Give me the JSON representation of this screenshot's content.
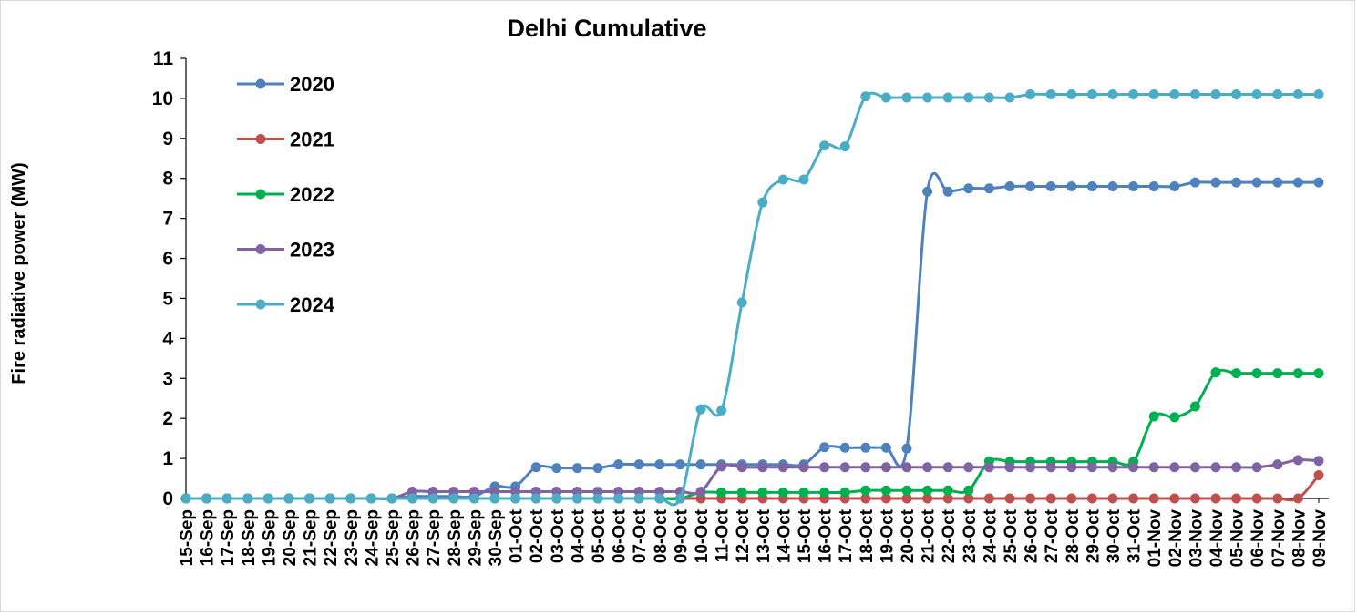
{
  "chart_data": {
    "type": "line",
    "title": "Delhi Cumulative",
    "ylabel": "Fire radiative power (MW)",
    "xlabel": "",
    "ylim": [
      0,
      11
    ],
    "yticks": [
      "0",
      "1",
      "2",
      "3",
      "4",
      "5",
      "6",
      "7",
      "8",
      "9",
      "10",
      "11"
    ],
    "grid": false,
    "legend_position": "top-left",
    "categories": [
      "15-Sep",
      "16-Sep",
      "17-Sep",
      "18-Sep",
      "19-Sep",
      "20-Sep",
      "21-Sep",
      "22-Sep",
      "23-Sep",
      "24-Sep",
      "25-Sep",
      "26-Sep",
      "27-Sep",
      "28-Sep",
      "29-Sep",
      "30-Sep",
      "01-Oct",
      "02-Oct",
      "03-Oct",
      "04-Oct",
      "05-Oct",
      "06-Oct",
      "07-Oct",
      "08-Oct",
      "09-Oct",
      "10-Oct",
      "11-Oct",
      "12-Oct",
      "13-Oct",
      "14-Oct",
      "15-Oct",
      "16-Oct",
      "17-Oct",
      "18-Oct",
      "19-Oct",
      "20-Oct",
      "21-Oct",
      "22-Oct",
      "23-Oct",
      "24-Oct",
      "25-Oct",
      "26-Oct",
      "27-Oct",
      "28-Oct",
      "29-Oct",
      "30-Oct",
      "31-Oct",
      "01-Nov",
      "02-Nov",
      "03-Nov",
      "04-Nov",
      "05-Nov",
      "06-Nov",
      "07-Nov",
      "08-Nov",
      "09-Nov"
    ],
    "series": [
      {
        "name": "2020",
        "color": "#4f81bd",
        "values": [
          0,
          0,
          0,
          0,
          0,
          0,
          0,
          0,
          0,
          0,
          0,
          0.05,
          0.05,
          0.05,
          0.05,
          0.3,
          0.3,
          0.78,
          0.76,
          0.76,
          0.76,
          0.85,
          0.85,
          0.85,
          0.85,
          0.85,
          0.85,
          0.85,
          0.85,
          0.85,
          0.85,
          1.28,
          1.27,
          1.27,
          1.27,
          1.25,
          7.67,
          7.67,
          7.75,
          7.75,
          7.8,
          7.8,
          7.8,
          7.8,
          7.8,
          7.8,
          7.8,
          7.8,
          7.8,
          7.9,
          7.9,
          7.9,
          7.9,
          7.9,
          7.9,
          7.9
        ]
      },
      {
        "name": "2021",
        "color": "#c0504d",
        "values": [
          0,
          0,
          0,
          0,
          0,
          0,
          0,
          0,
          0,
          0,
          0,
          0,
          0,
          0,
          0,
          0,
          0,
          0,
          0,
          0,
          0,
          0,
          0,
          0,
          0,
          0,
          0,
          0,
          0,
          0,
          0,
          0,
          0,
          0,
          0,
          0,
          0,
          0,
          0,
          0,
          0,
          0,
          0,
          0,
          0,
          0,
          0,
          0,
          0,
          0,
          0,
          0,
          0,
          0,
          0,
          0.58
        ]
      },
      {
        "name": "2022",
        "color": "#00b050",
        "values": [
          0,
          0,
          0,
          0,
          0,
          0,
          0,
          0,
          0,
          0,
          0,
          0,
          0,
          0,
          0,
          0,
          0,
          0,
          0,
          0,
          0,
          0,
          0,
          0,
          0,
          0.15,
          0.15,
          0.15,
          0.15,
          0.15,
          0.15,
          0.15,
          0.15,
          0.2,
          0.2,
          0.2,
          0.2,
          0.2,
          0.2,
          0.93,
          0.92,
          0.92,
          0.92,
          0.92,
          0.92,
          0.92,
          0.92,
          2.05,
          2.03,
          2.3,
          3.15,
          3.13,
          3.13,
          3.13,
          3.13,
          3.13
        ]
      },
      {
        "name": "2023",
        "color": "#8064a2",
        "values": [
          0,
          0,
          0,
          0,
          0,
          0,
          0,
          0,
          0,
          0,
          0,
          0.17,
          0.17,
          0.17,
          0.17,
          0.17,
          0.17,
          0.17,
          0.17,
          0.17,
          0.17,
          0.17,
          0.17,
          0.17,
          0.17,
          0.17,
          0.8,
          0.78,
          0.78,
          0.78,
          0.78,
          0.78,
          0.78,
          0.78,
          0.78,
          0.78,
          0.78,
          0.78,
          0.78,
          0.78,
          0.78,
          0.78,
          0.78,
          0.78,
          0.78,
          0.78,
          0.78,
          0.78,
          0.78,
          0.78,
          0.78,
          0.78,
          0.78,
          0.85,
          0.96,
          0.94
        ]
      },
      {
        "name": "2024",
        "color": "#4bacc6",
        "values": [
          0,
          0,
          0,
          0,
          0,
          0,
          0,
          0,
          0,
          0,
          0,
          0,
          0,
          0,
          0,
          0,
          0,
          0,
          0,
          0,
          0,
          0,
          0,
          0,
          0,
          2.23,
          2.2,
          4.9,
          7.4,
          7.97,
          7.97,
          8.82,
          8.8,
          10.05,
          10.02,
          10.02,
          10.02,
          10.02,
          10.02,
          10.02,
          10.02,
          10.1,
          10.1,
          10.1,
          10.1,
          10.1,
          10.1,
          10.1,
          10.1,
          10.1,
          10.1,
          10.1,
          10.1,
          10.1,
          10.1,
          10.1
        ]
      }
    ]
  }
}
